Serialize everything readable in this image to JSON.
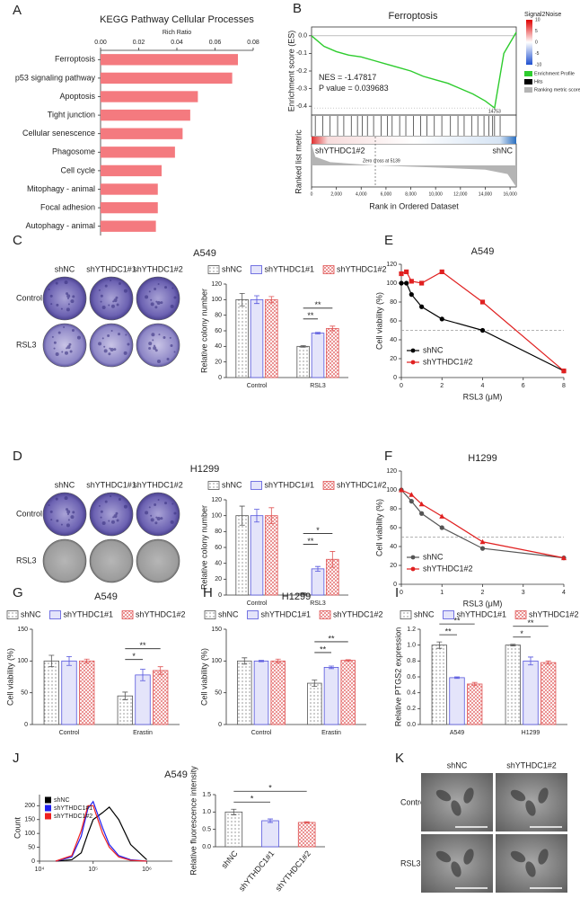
{
  "chart_data": [
    {
      "label": "A",
      "type": "barh",
      "title": "KEGG Pathway Cellular Processes",
      "xlabel": "Rich Ratio",
      "xaxis_position": "top",
      "color": "#f47a7f",
      "categories": [
        "Ferroptosis",
        "p53 signaling pathway",
        "Apoptosis",
        "Tight junction",
        "Cellular senescence",
        "Phagosome",
        "Cell cycle",
        "Mitophagy - animal",
        "Focal adhesion",
        "Autophagy - animal"
      ],
      "values": [
        0.072,
        0.069,
        0.051,
        0.047,
        0.043,
        0.039,
        0.032,
        0.03,
        0.03,
        0.029
      ],
      "xlim": [
        0,
        0.08
      ],
      "xticks": [
        {
          "value": 0,
          "label": "0.00"
        },
        {
          "value": 0.02,
          "label": "0.02"
        },
        {
          "value": 0.04,
          "label": "0.04"
        },
        {
          "value": 0.06,
          "label": "0.06"
        },
        {
          "value": 0.08,
          "label": "0.08"
        }
      ]
    },
    {
      "label": "B",
      "type": "gsea",
      "title": "Ferroptosis",
      "ylabel": "Enrichment score (ES)",
      "ylabel2": "Ranked list metric",
      "xlabel": "Rank in Ordered Dataset",
      "x": [
        0,
        1000,
        2000,
        3000,
        4000,
        5000,
        6000,
        7000,
        8000,
        9000,
        10000,
        11000,
        12000,
        13000,
        14000,
        14753,
        15500,
        16500
      ],
      "values": [
        0,
        -0.06,
        -0.09,
        -0.11,
        -0.12,
        -0.14,
        -0.16,
        -0.18,
        -0.2,
        -0.23,
        -0.25,
        -0.27,
        -0.3,
        -0.33,
        -0.37,
        -0.41,
        -0.1,
        0.02
      ],
      "xlim": [
        0,
        16500
      ],
      "xticks": [
        0,
        {
          "value": 2000,
          "label": "2,000"
        },
        {
          "value": 4000,
          "label": "4,000"
        },
        {
          "value": 6000,
          "label": "6,000"
        },
        {
          "value": 8000,
          "label": "8,000"
        },
        {
          "value": 10000,
          "label": "10,000"
        },
        {
          "value": 12000,
          "label": "12,000"
        },
        {
          "value": 14000,
          "label": "14,000"
        },
        {
          "value": 16000,
          "label": "16,000"
        }
      ],
      "ylim": [
        -0.45,
        0.05
      ],
      "yticks": [
        {
          "value": 0,
          "label": "0.0"
        },
        -0.1,
        -0.2,
        -0.3,
        -0.4
      ],
      "hits": [
        300,
        900,
        1500,
        2100,
        2600,
        3200,
        3700,
        4100,
        4500,
        5000,
        5600,
        6100,
        6500,
        7100,
        7600,
        8200,
        8800,
        9300,
        9900,
        10500,
        11200,
        11800,
        12300,
        12900,
        13400,
        13900,
        14300,
        14600,
        14753,
        15200
      ],
      "metric_x": [
        0,
        300,
        1500,
        5139,
        10000,
        14000,
        15800,
        16500
      ],
      "metric": [
        10,
        4,
        1.5,
        0,
        -1,
        -2,
        -4,
        -10
      ],
      "metric_ylim": [
        -10,
        10
      ],
      "peak_x": 14753,
      "zero_cross": 5139,
      "zero_cross_label": "Zero cross at 5139",
      "nes": "NES = -1.47817",
      "pvalue": "P value = 0.039683",
      "groups": [
        "shYTHDC1#2",
        "shNC"
      ],
      "colorbar_title": "Signal2Noise",
      "colorbar_ticks": [
        10,
        5,
        0,
        -5,
        -10
      ],
      "legend": [
        {
          "name": "Enrichment Profile",
          "color": "#2ecc2e"
        },
        {
          "name": "Hits",
          "color": "#000000"
        },
        {
          "name": "Ranking metric scores",
          "color": "#b4b4b4"
        }
      ]
    },
    {
      "label": "C",
      "type": "bar",
      "ylabel": "Relative colony number",
      "categories": [
        "Control",
        "RSL3"
      ],
      "series": [
        {
          "name": "shNC",
          "color": "#555555",
          "values": [
            100,
            40
          ],
          "errors": [
            8,
            1
          ]
        },
        {
          "name": "shYTHDC1#1",
          "color": "#5555dd",
          "values": [
            100,
            57
          ],
          "errors": [
            5,
            1
          ]
        },
        {
          "name": "shYTHDC1#2",
          "color": "#e05555",
          "values": [
            100,
            63
          ],
          "errors": [
            4,
            3
          ]
        }
      ],
      "ylim": [
        0,
        120
      ],
      "yticks": [
        0,
        20,
        40,
        60,
        80,
        100,
        120
      ],
      "annotations": [
        "**",
        "**"
      ]
    },
    {
      "label": "E",
      "type": "line",
      "title": "A549",
      "xlabel": "RSL3 (μM)",
      "ylabel": "Cell viability (%)",
      "legend_corner": "lower left",
      "x": [
        0,
        0.25,
        0.5,
        1,
        2,
        4,
        8
      ],
      "series": [
        {
          "name": "shNC",
          "color": "#000000",
          "marker": "circle",
          "values": [
            100,
            100,
            88,
            75,
            62,
            50,
            7
          ]
        },
        {
          "name": "shYTHDC1#2",
          "color": "#e02020",
          "marker": "square",
          "values": [
            110,
            112,
            102,
            100,
            112,
            80,
            7
          ]
        }
      ],
      "xlim": [
        0,
        8
      ],
      "xticks": [
        0,
        2,
        4,
        6,
        8
      ],
      "ylim": [
        0,
        120
      ],
      "yticks": [
        0,
        20,
        40,
        60,
        80,
        100,
        120
      ],
      "hline": 50
    },
    {
      "label": "D",
      "type": "bar",
      "ylabel": "Relative colony number",
      "categories": [
        "Control",
        "RSL3"
      ],
      "series": [
        {
          "name": "shNC",
          "color": "#555555",
          "values": [
            100,
            2
          ],
          "errors": [
            12,
            1
          ]
        },
        {
          "name": "shYTHDC1#1",
          "color": "#5555dd",
          "values": [
            100,
            33
          ],
          "errors": [
            8,
            3
          ]
        },
        {
          "name": "shYTHDC1#2",
          "color": "#e05555",
          "values": [
            100,
            45
          ],
          "errors": [
            10,
            10
          ]
        }
      ],
      "ylim": [
        0,
        120
      ],
      "yticks": [
        0,
        20,
        40,
        60,
        80,
        100,
        120
      ],
      "annotations": [
        "*",
        "**"
      ]
    },
    {
      "label": "F",
      "type": "line",
      "title": "H1299",
      "xlabel": "RSL3 (μM)",
      "ylabel": "Cell viability (%)",
      "legend_corner": "lower left",
      "x": [
        0,
        0.25,
        0.5,
        1,
        2,
        4
      ],
      "series": [
        {
          "name": "shNC",
          "color": "#555555",
          "marker": "circle",
          "values": [
            100,
            88,
            75,
            60,
            38,
            28
          ]
        },
        {
          "name": "shYTHDC1#2",
          "color": "#e02020",
          "marker": "triangle",
          "values": [
            100,
            95,
            85,
            72,
            45,
            28
          ]
        }
      ],
      "xlim": [
        0,
        4
      ],
      "xticks": [
        0,
        1,
        2,
        3,
        4
      ],
      "ylim": [
        0,
        120
      ],
      "yticks": [
        0,
        20,
        40,
        60,
        80,
        100,
        120
      ],
      "hline": 50
    },
    {
      "label": "G",
      "type": "bar",
      "title": "A549",
      "ylabel": "Cell viability (%)",
      "categories": [
        "Control",
        "Erastin"
      ],
      "series": [
        {
          "name": "shNC",
          "color": "#555555",
          "values": [
            100,
            45
          ],
          "errors": [
            9,
            6
          ]
        },
        {
          "name": "shYTHDC1#1",
          "color": "#5555dd",
          "values": [
            100,
            78
          ],
          "errors": [
            7,
            9
          ]
        },
        {
          "name": "shYTHDC1#2",
          "color": "#e05555",
          "values": [
            100,
            85
          ],
          "errors": [
            3,
            6
          ]
        }
      ],
      "ylim": [
        0,
        150
      ],
      "yticks": [
        0,
        50,
        100,
        150
      ],
      "annotations": [
        "**",
        "*"
      ]
    },
    {
      "label": "H",
      "type": "bar",
      "title": "H1299",
      "ylabel": "Cell viability (%)",
      "categories": [
        "Control",
        "Erastin"
      ],
      "series": [
        {
          "name": "shNC",
          "color": "#555555",
          "values": [
            100,
            65
          ],
          "errors": [
            5,
            5
          ]
        },
        {
          "name": "shYTHDC1#1",
          "color": "#5555dd",
          "values": [
            100,
            90
          ],
          "errors": [
            1,
            2
          ]
        },
        {
          "name": "shYTHDC1#2",
          "color": "#e05555",
          "values": [
            100,
            101
          ],
          "errors": [
            3,
            1
          ]
        }
      ],
      "ylim": [
        0,
        150
      ],
      "yticks": [
        0,
        50,
        100,
        150
      ],
      "annotations": [
        "**",
        "**"
      ]
    },
    {
      "label": "I",
      "type": "bar",
      "ylabel": "Relative PTGS2 expression",
      "categories": [
        "A549",
        "H1299"
      ],
      "series": [
        {
          "name": "shNC",
          "color": "#555555",
          "values": [
            1.0,
            1.0
          ],
          "errors": [
            0.04,
            0.01
          ]
        },
        {
          "name": "shYTHDC1#1",
          "color": "#5555dd",
          "values": [
            0.59,
            0.8
          ],
          "errors": [
            0.01,
            0.05
          ]
        },
        {
          "name": "shYTHDC1#2",
          "color": "#e05555",
          "values": [
            0.51,
            0.78
          ],
          "errors": [
            0.02,
            0.02
          ]
        }
      ],
      "ylim": [
        0,
        1.2
      ],
      "yticks": [
        {
          "value": 0,
          "label": "0.0"
        },
        0.2,
        0.4,
        0.6,
        0.8,
        {
          "value": 1,
          "label": "1.0"
        },
        1.2
      ],
      "annotations": [
        "**",
        "**",
        "**",
        "*"
      ]
    },
    {
      "label": "J",
      "type": "line",
      "title": "A549",
      "ylabel": "Count",
      "xlog": true,
      "legend_corner": "upper left",
      "x": [
        20000,
        40000,
        60000,
        80000,
        100000,
        150000,
        200000,
        300000,
        500000,
        1000000
      ],
      "series": [
        {
          "name": "shNC",
          "color": "#000000",
          "values": [
            0,
            5,
            30,
            100,
            150,
            175,
            195,
            150,
            60,
            5
          ]
        },
        {
          "name": "shYTHDC1#1",
          "color": "#2020ee",
          "values": [
            0,
            15,
            90,
            190,
            215,
            120,
            60,
            20,
            5,
            0
          ]
        },
        {
          "name": "shYTHDC1#2",
          "color": "#ee2020",
          "values": [
            0,
            20,
            110,
            200,
            200,
            100,
            50,
            15,
            3,
            0
          ]
        }
      ],
      "xlim": [
        10000,
        3000000
      ],
      "xticks": [
        {
          "value": 10000,
          "label": "10⁴"
        },
        {
          "value": 100000,
          "label": "10⁵"
        },
        {
          "value": 1000000,
          "label": "10⁶"
        }
      ],
      "ylim": [
        0,
        240
      ],
      "yticks": [
        0,
        50,
        100,
        150,
        200
      ]
    },
    {
      "type": "bar",
      "ylabel": "Relative fluorescence intensity",
      "rotate_labels": true,
      "categories": [
        "shNC",
        "shYTHDC1#1",
        "shYTHDC1#2"
      ],
      "values": [
        1.0,
        0.75,
        0.7
      ],
      "errors": [
        0.08,
        0.05,
        0.02
      ],
      "colors": [
        "#555555",
        "#5555dd",
        "#e05555"
      ],
      "ylim": [
        0,
        1.5
      ],
      "yticks": [
        {
          "value": 0,
          "label": "0.0"
        },
        0.5,
        {
          "value": 1,
          "label": "1.0"
        },
        1.5
      ],
      "annotations": [
        "*",
        "*"
      ]
    }
  ],
  "images": [
    {
      "title": "A549",
      "columns": [
        "shNC",
        "shYTHDC1#1",
        "shYTHDC1#2"
      ],
      "rows": [
        "Control",
        "RSL3"
      ]
    },
    {
      "title": "H1299",
      "columns": [
        "shNC",
        "shYTHDC1#1",
        "shYTHDC1#2"
      ],
      "rows": [
        "Control",
        "RSL3"
      ]
    },
    {
      "label": "K",
      "columns": [
        "shNC",
        "shYTHDC1#2"
      ],
      "rows": [
        "Control",
        "RSL3"
      ]
    }
  ]
}
